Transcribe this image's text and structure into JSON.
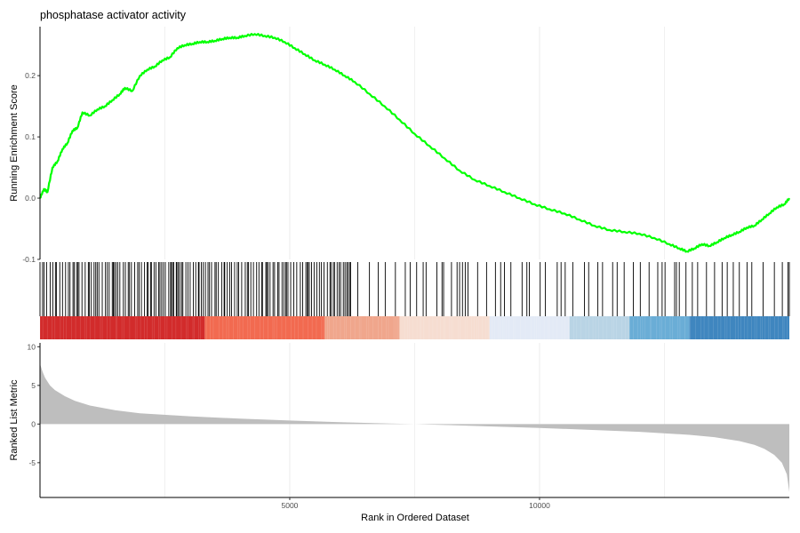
{
  "chart_data": {
    "type": "line",
    "title": "phosphatase activator activity",
    "xlabel": "Rank in Ordered Dataset",
    "xlim": [
      1,
      15000
    ],
    "grid": true,
    "panels": [
      {
        "name": "running-enrichment",
        "ylabel": "Running Enrichment Score",
        "ylim": [
          -0.1,
          0.28
        ],
        "yticks": [
          {
            "value": 0.2,
            "label": "0.2"
          },
          {
            "value": 0.1,
            "label": "0.1"
          },
          {
            "value": 0.0,
            "label": "0.0"
          },
          {
            "value": -0.1,
            "label": "-0.1"
          }
        ],
        "color": "#00FF00",
        "series": [
          {
            "x": [
              1,
              80,
              150,
              250,
              350,
              450,
              550,
              650,
              750,
              850,
              1000,
              1150,
              1300,
              1450,
              1600,
              1700,
              1850,
              2000,
              2150,
              2300,
              2450,
              2600,
              2750,
              2900,
              3050,
              3200,
              3350,
              3500,
              3650,
              3800,
              3950,
              4100,
              4300,
              4500,
              4700,
              4900,
              5100,
              5300,
              5500,
              5700,
              5900,
              6100,
              6300,
              6600,
              6900,
              7200,
              7500,
              7800,
              8100,
              8400,
              8700,
              9000,
              9300,
              9600,
              9900,
              10200,
              10500,
              10800,
              11100,
              11400,
              11700,
              12000,
              12300,
              12600,
              12800,
              12950,
              13100,
              13250,
              13400,
              13550,
              13700,
              13850,
              14000,
              14150,
              14300,
              14450,
              14600,
              14750,
              14900,
              15000
            ],
            "y": [
              0.0,
              0.015,
              0.01,
              0.05,
              0.06,
              0.08,
              0.09,
              0.11,
              0.115,
              0.14,
              0.135,
              0.145,
              0.15,
              0.16,
              0.17,
              0.18,
              0.175,
              0.2,
              0.21,
              0.215,
              0.225,
              0.23,
              0.245,
              0.25,
              0.252,
              0.255,
              0.255,
              0.257,
              0.26,
              0.262,
              0.262,
              0.265,
              0.268,
              0.265,
              0.262,
              0.255,
              0.245,
              0.235,
              0.225,
              0.218,
              0.21,
              0.2,
              0.19,
              0.17,
              0.15,
              0.128,
              0.105,
              0.085,
              0.065,
              0.045,
              0.03,
              0.02,
              0.01,
              0.0,
              -0.01,
              -0.018,
              -0.025,
              -0.035,
              -0.045,
              -0.052,
              -0.055,
              -0.058,
              -0.065,
              -0.075,
              -0.082,
              -0.087,
              -0.082,
              -0.075,
              -0.078,
              -0.072,
              -0.065,
              -0.06,
              -0.055,
              -0.048,
              -0.045,
              -0.035,
              -0.025,
              -0.015,
              -0.01,
              0.0
            ]
          }
        ]
      },
      {
        "name": "gene-hits",
        "hits_dense_until": 6200,
        "hits_sparse_spacing": 210
      },
      {
        "name": "ranking-bar",
        "bands": [
          {
            "from": 1,
            "to": 3300,
            "color": "#D22B2B"
          },
          {
            "from": 3300,
            "to": 5700,
            "color": "#F26A50"
          },
          {
            "from": 5700,
            "to": 7200,
            "color": "#F0A68C"
          },
          {
            "from": 7200,
            "to": 9000,
            "color": "#F6DDD1"
          },
          {
            "from": 9000,
            "to": 10600,
            "color": "#E3EAF6"
          },
          {
            "from": 10600,
            "to": 11800,
            "color": "#B9D4E5"
          },
          {
            "from": 11800,
            "to": 13000,
            "color": "#6AADD6"
          },
          {
            "from": 13000,
            "to": 15000,
            "color": "#3F86BF"
          }
        ]
      },
      {
        "name": "ranked-list-metric",
        "ylabel": "Ranked List Metric",
        "ylim": [
          -9.5,
          10.5
        ],
        "yticks": [
          {
            "value": 10,
            "label": "10"
          },
          {
            "value": 5,
            "label": "5"
          },
          {
            "value": 0,
            "label": "0"
          },
          {
            "value": -5,
            "label": "-5"
          }
        ],
        "color": "#BEBEBE",
        "series": [
          {
            "x": [
              1,
              50,
              100,
              200,
              300,
              500,
              700,
              1000,
              1500,
              2000,
              3000,
              4000,
              5000,
              6000,
              7000,
              7500,
              8000,
              9000,
              10000,
              11000,
              12000,
              13000,
              13500,
              14000,
              14300,
              14500,
              14700,
              14850,
              14950,
              15000
            ],
            "y": [
              7.8,
              6.8,
              6.0,
              5.0,
              4.4,
              3.6,
              3.0,
              2.4,
              1.8,
              1.4,
              1.0,
              0.7,
              0.45,
              0.25,
              0.08,
              0.0,
              -0.1,
              -0.3,
              -0.5,
              -0.75,
              -1.0,
              -1.4,
              -1.7,
              -2.2,
              -2.7,
              -3.2,
              -4.0,
              -5.0,
              -6.5,
              -8.8
            ]
          }
        ]
      }
    ],
    "xticks": [
      {
        "value": 5000,
        "label": "5000"
      },
      {
        "value": 10000,
        "label": "10000"
      }
    ]
  }
}
